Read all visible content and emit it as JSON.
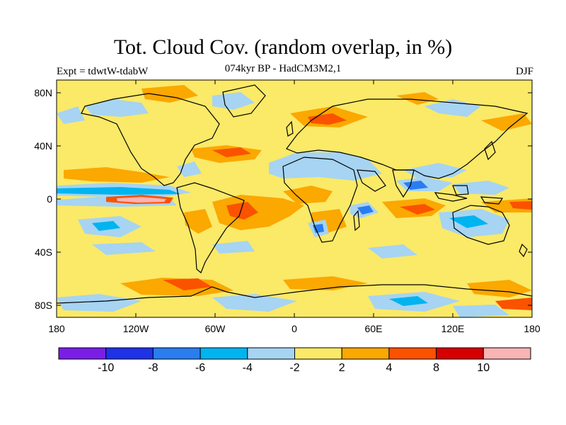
{
  "title": "Tot. Cloud Cov. (random overlap, in %)",
  "subtitle": "074kyr BP - HadCM3M2,1",
  "left_label": "Expt = tdwtW-tdabW",
  "right_label": "DJF",
  "lat_ticks": [
    "80N",
    "40N",
    "0",
    "40S",
    "80S"
  ],
  "lon_ticks": [
    "180",
    "120W",
    "60W",
    "0",
    "60E",
    "120E",
    "180"
  ],
  "colorbar": {
    "colors": [
      "#7a1ee6",
      "#1e32e6",
      "#2a7df0",
      "#00b4f0",
      "#a6d4f2",
      "#fbe968",
      "#fba800",
      "#fb5200",
      "#d60000",
      "#f9b4b4"
    ],
    "labels": [
      "-10",
      "-8",
      "-6",
      "-4",
      "-2",
      "2",
      "4",
      "8",
      "10"
    ]
  },
  "map_colors": {
    "background": "#fbe968",
    "light_blue": "#a6d4f2",
    "cyan": "#00b4f0",
    "blue": "#2a7df0",
    "orange": "#fba800",
    "red_orange": "#fb5200",
    "pink": "#f9b4b4",
    "coast": "#000000"
  }
}
